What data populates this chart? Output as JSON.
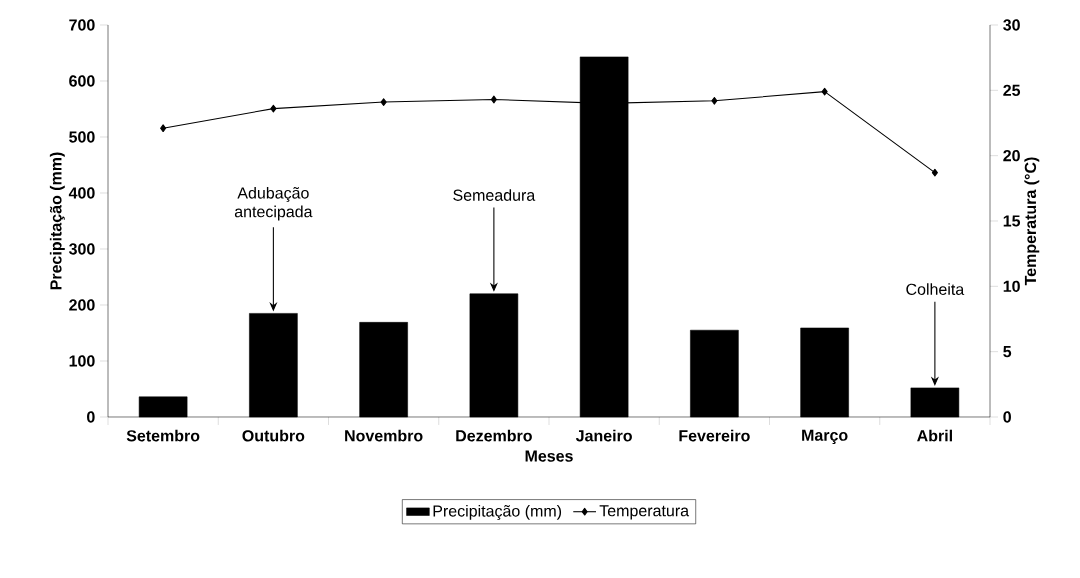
{
  "chart_data": {
    "type": "bar",
    "xlabel": "Meses",
    "ylabel": "Precipitação (mm)",
    "y2label": "Temperatura (°C)",
    "categories": [
      "Setembro",
      "Outubro",
      "Novembro",
      "Dezembro",
      "Janeiro",
      "Fevereiro",
      "Março",
      "Abril"
    ],
    "series": [
      {
        "name": "Precipitação (mm)",
        "color": "#000000",
        "values": [
          36,
          185,
          169,
          220,
          643,
          155,
          159,
          52
        ]
      },
      {
        "name": "Temperatura",
        "type": "line",
        "axis": "y2",
        "color": "#000000",
        "marker": "diamond",
        "values": [
          22.1,
          23.6,
          24.1,
          24.3,
          24.0,
          24.2,
          24.9,
          18.7
        ]
      }
    ],
    "ylim": [
      0,
      700
    ],
    "yticks": [
      0,
      100,
      200,
      300,
      400,
      500,
      600,
      700
    ],
    "y2lim": [
      0,
      30
    ],
    "y2ticks": [
      0,
      5,
      10,
      15,
      20,
      25,
      30
    ],
    "legend": "bottom",
    "grid": false,
    "annotations": [
      {
        "text": "Adubação antecipada",
        "x": "Outubro",
        "y": 185
      },
      {
        "text": "Semeadura",
        "x": "Dezembro",
        "y": 220
      },
      {
        "text": "Colheita",
        "x": "Abril",
        "y": 52
      }
    ]
  }
}
